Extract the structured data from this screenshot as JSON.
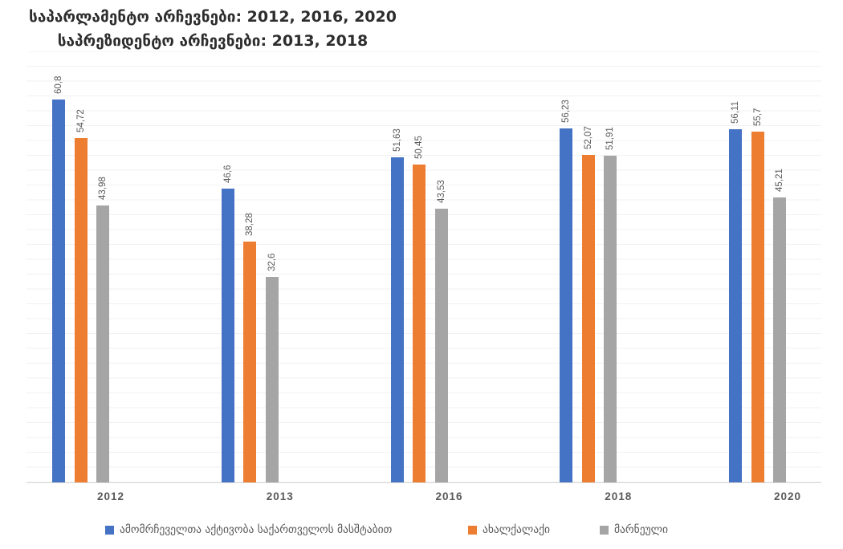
{
  "chart_data": {
    "type": "bar",
    "title_lines": [
      "საპარლამენტო არჩევნები: 2012, 2016, 2020",
      "საპრეზიდენტო არჩევნები: 2013, 2018"
    ],
    "categories": [
      "2012",
      "2013",
      "2016",
      "2018",
      "2020"
    ],
    "series": [
      {
        "name": "ამომრჩეველთა აქტივობა საქართველოს მასშტაბით",
        "color": "#4472C4",
        "values": [
          60.8,
          46.6,
          51.63,
          56.23,
          56.11
        ],
        "labels": [
          "60,8",
          "46,6",
          "51,63",
          "56,23",
          "56,11"
        ]
      },
      {
        "name": "ახალქალაქი",
        "color": "#ED7D31",
        "values": [
          54.72,
          38.28,
          50.45,
          52.07,
          55.7
        ],
        "labels": [
          "54,72",
          "38,28",
          "50,45",
          "52,07",
          "55,7"
        ]
      },
      {
        "name": "მარნეული",
        "color": "#A5A5A5",
        "values": [
          43.98,
          32.6,
          43.53,
          51.91,
          45.21
        ],
        "labels": [
          "43,98",
          "32,6",
          "43,53",
          "51,91",
          "45,21"
        ]
      }
    ],
    "xlabel": "",
    "ylabel": "",
    "ylim": [
      0,
      68.4
    ],
    "grid": true,
    "grid_color": "#f1f1f1",
    "axis_line_color": "#d8d8d8",
    "label_color": "#595959",
    "title_color": "#2d2d2d",
    "legend_position": "bottom",
    "value_labels_rotation": -90
  }
}
